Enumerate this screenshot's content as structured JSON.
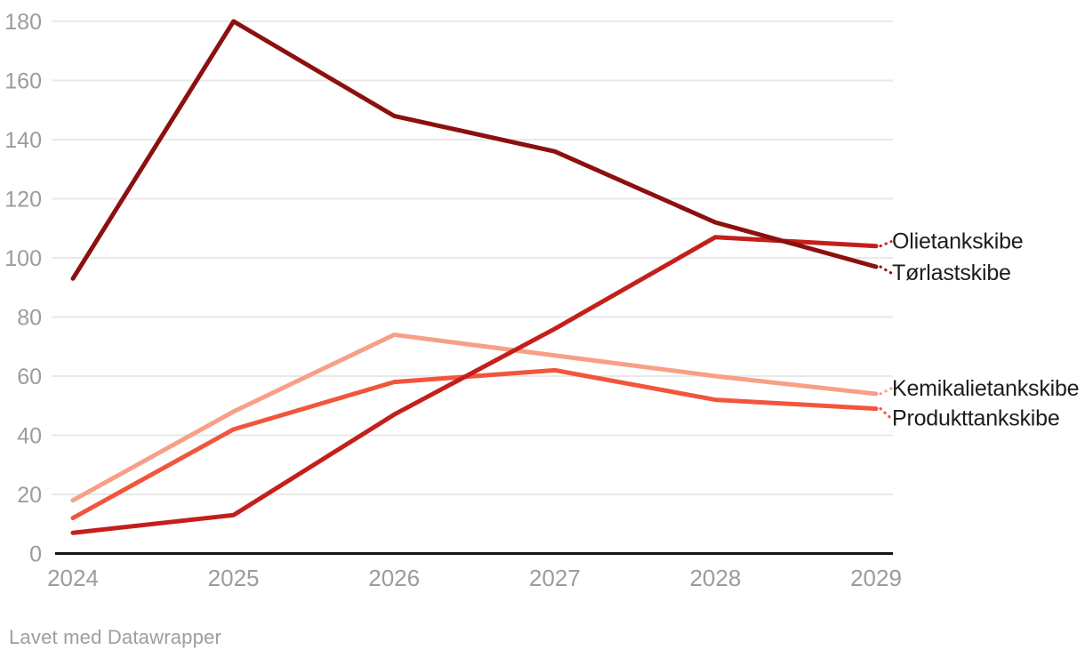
{
  "attribution": "Lavet med Datawrapper",
  "colors": {
    "background": "#ffffff",
    "gridline": "#e9e9e9",
    "axis_line": "#161616",
    "tick_label": "#9c9c9c",
    "series_label": "#1d1d1d",
    "attribution": "#9e9e9e"
  },
  "chart_data": {
    "type": "line",
    "title": "",
    "xlabel": "",
    "ylabel": "",
    "x": [
      "2024",
      "2025",
      "2026",
      "2027",
      "2028",
      "2029"
    ],
    "ylim": [
      0,
      180
    ],
    "ytick_step": 20,
    "grid": true,
    "legend_position": "right-direct-labels",
    "series": [
      {
        "name": "Olietankskibe",
        "color": "#c31f1b",
        "values": [
          7,
          13,
          47,
          76,
          107,
          104
        ],
        "z": 3,
        "label_dy": -5
      },
      {
        "name": "Tørlastskibe",
        "color": "#8b100e",
        "values": [
          93,
          180,
          148,
          136,
          112,
          97
        ],
        "z": 4,
        "label_dy": 7
      },
      {
        "name": "Kemikalietankskibe",
        "color": "#f7a085",
        "values": [
          18,
          48,
          74,
          67,
          60,
          54
        ],
        "z": 1,
        "label_dy": -6
      },
      {
        "name": "Produkttankskibe",
        "color": "#f1563d",
        "values": [
          12,
          42,
          58,
          62,
          52,
          49
        ],
        "z": 2,
        "label_dy": 11
      }
    ]
  }
}
